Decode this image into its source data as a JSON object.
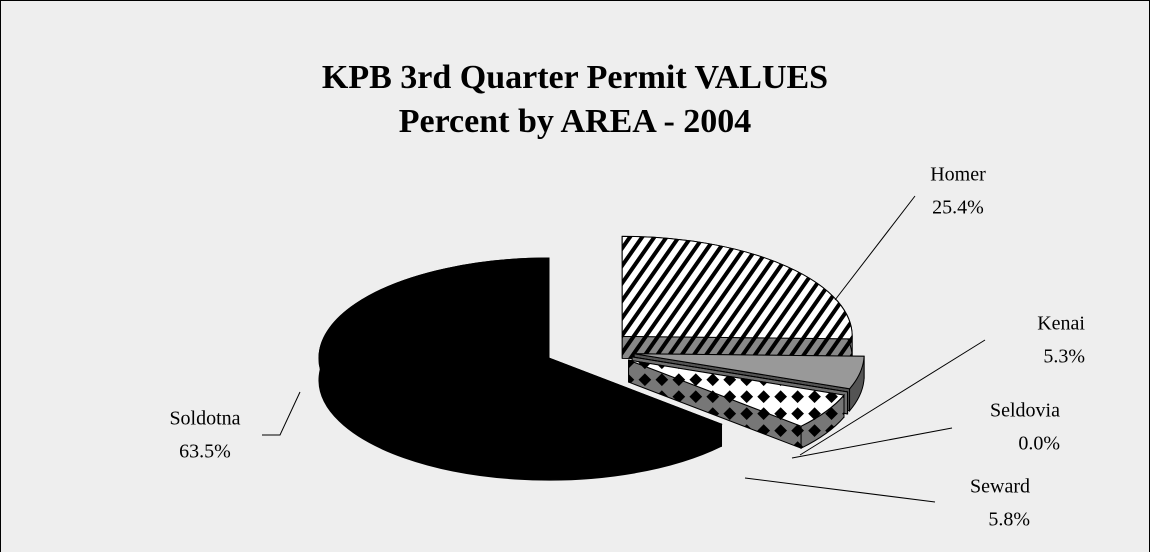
{
  "chart_data": {
    "type": "pie",
    "title": "KPB 3rd Quarter Permit VALUES",
    "subtitle": "Percent by AREA - 2004",
    "categories": [
      "Homer",
      "Kenai",
      "Seldovia",
      "Seward",
      "Soldotna"
    ],
    "values": [
      25.4,
      5.3,
      0.0,
      5.8,
      63.5
    ],
    "value_labels": [
      "25.4%",
      "5.3%",
      "0.0%",
      "5.8%",
      "63.5%"
    ],
    "colors": [
      "#ffffff",
      "#999999",
      "#cccccc",
      "#ffffff",
      "#000000"
    ],
    "patterns": [
      "diagonal-stripes",
      "none",
      "none",
      "checker",
      "none"
    ]
  }
}
